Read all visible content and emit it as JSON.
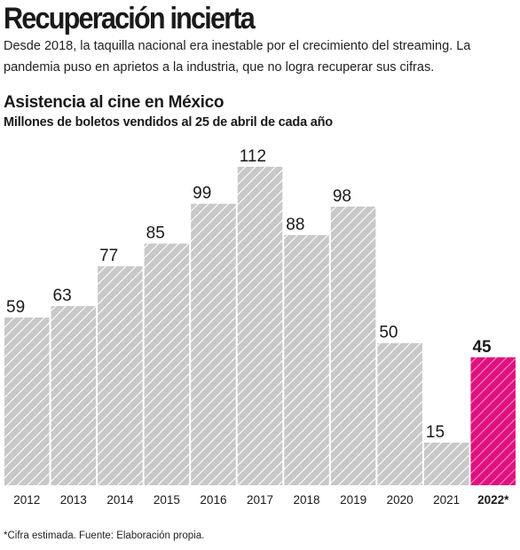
{
  "headline": "Recuperación incierta",
  "dek": "Desde 2018, la taquilla nacional era inestable por el crecimiento del streaming. La pandemia puso en aprietos a la industria, que no logra recuperar sus cifras.",
  "footnote": "*Cifra estimada. Fuente: Elaboración propia.",
  "colors": {
    "bar": "#c8c8c8",
    "bar_hatch": "#ffffff",
    "highlight": "#e0117f",
    "highlight_hatch": "#ff8cc6",
    "text": "#1a1a1a"
  },
  "chart_data": {
    "type": "bar",
    "title": "Asistencia al cine en México",
    "subtitle": "Millones de boletos vendidos al 25 de abril de cada año",
    "categories": [
      "2012",
      "2013",
      "2014",
      "2015",
      "2016",
      "2017",
      "2018",
      "2019",
      "2020",
      "2021",
      "2022*"
    ],
    "values": [
      59,
      63,
      77,
      85,
      99,
      112,
      88,
      98,
      50,
      15,
      45
    ],
    "data_labels": [
      "59",
      "63",
      "77",
      "85",
      "99",
      "112",
      "88",
      "98",
      "50",
      "15",
      "45"
    ],
    "highlight_index": 10,
    "ylim": [
      0,
      112
    ],
    "grid": false,
    "legend": "none"
  }
}
